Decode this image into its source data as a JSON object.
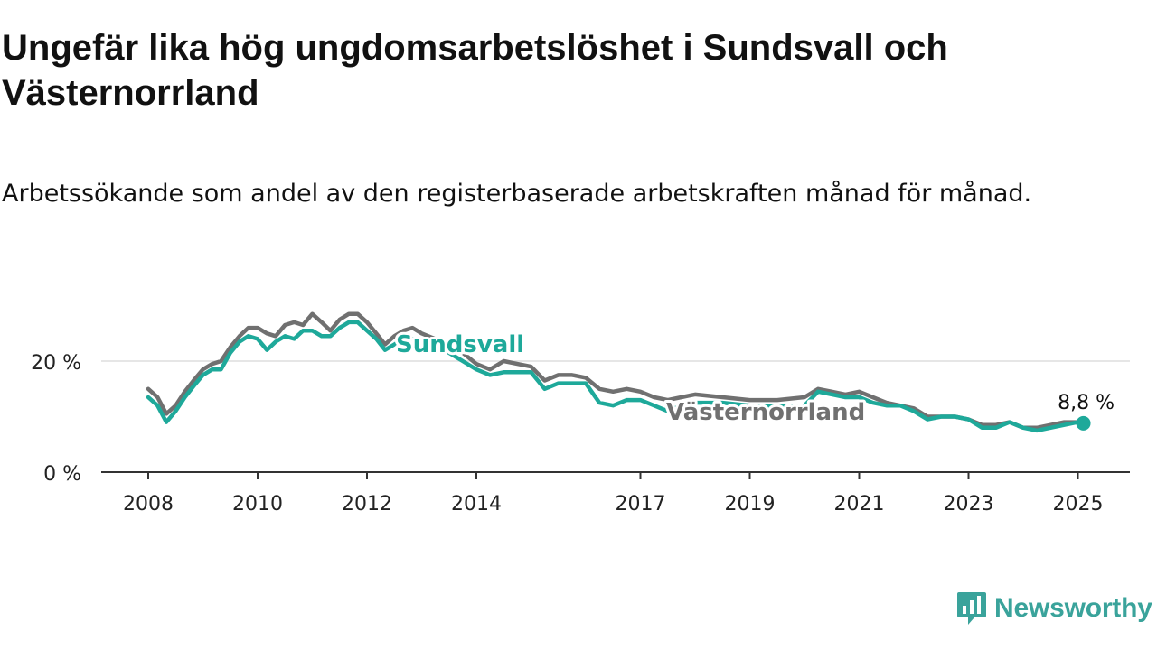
{
  "title": "Ungefär lika hög ungdomsarbetslöshet i Sundsvall och Västernorrland",
  "subtitle": "Arbetssökande som andel av den registerbaserade arbetskraften månad för månad.",
  "brand": {
    "name": "Newsworthy",
    "color": "#3aa39b",
    "icon": "newsworthy-chart-bubble-icon"
  },
  "chart_data": {
    "type": "line",
    "xlabel": "",
    "ylabel": "",
    "x_range": [
      2008,
      2025.1
    ],
    "ylim": [
      0,
      30
    ],
    "y_ticks": [
      0,
      20
    ],
    "y_tick_labels": [
      "0 %",
      "20 %"
    ],
    "x_ticks": [
      2008,
      2010,
      2012,
      2014,
      2017,
      2019,
      2021,
      2023,
      2025
    ],
    "x_tick_labels": [
      "2008",
      "2010",
      "2012",
      "2014",
      "2017",
      "2019",
      "2021",
      "2023",
      "2025"
    ],
    "grid": "horizontal",
    "legend": "inline labels",
    "end_label": "8,8 %",
    "series": [
      {
        "name": "Västernorrland",
        "color": "#707070",
        "x": [
          2008.0,
          2008.17,
          2008.33,
          2008.5,
          2008.67,
          2008.83,
          2009.0,
          2009.17,
          2009.33,
          2009.5,
          2009.67,
          2009.83,
          2010.0,
          2010.17,
          2010.33,
          2010.5,
          2010.67,
          2010.83,
          2011.0,
          2011.17,
          2011.33,
          2011.5,
          2011.67,
          2011.83,
          2012.0,
          2012.17,
          2012.33,
          2012.5,
          2012.67,
          2012.83,
          2013.0,
          2013.25,
          2013.5,
          2013.75,
          2014.0,
          2014.25,
          2014.5,
          2014.75,
          2015.0,
          2015.25,
          2015.5,
          2015.75,
          2016.0,
          2016.25,
          2016.5,
          2016.75,
          2017.0,
          2017.25,
          2017.5,
          2017.75,
          2018.0,
          2018.5,
          2019.0,
          2019.5,
          2020.0,
          2020.25,
          2020.5,
          2020.75,
          2021.0,
          2021.25,
          2021.5,
          2021.75,
          2022.0,
          2022.25,
          2022.5,
          2022.75,
          2023.0,
          2023.25,
          2023.5,
          2023.75,
          2024.0,
          2024.25,
          2024.5,
          2024.75,
          2025.0,
          2025.1
        ],
        "values": [
          15.0,
          13.5,
          10.5,
          12.0,
          14.5,
          16.5,
          18.5,
          19.5,
          20.0,
          22.5,
          24.5,
          26.0,
          26.0,
          25.0,
          24.5,
          26.5,
          27.0,
          26.5,
          28.5,
          27.0,
          25.5,
          27.5,
          28.5,
          28.5,
          27.0,
          25.0,
          23.0,
          24.5,
          25.5,
          26.0,
          25.0,
          24.0,
          23.0,
          21.5,
          19.5,
          18.5,
          20.0,
          19.5,
          19.0,
          16.5,
          17.5,
          17.5,
          17.0,
          15.0,
          14.5,
          15.0,
          14.5,
          13.5,
          13.0,
          13.5,
          14.0,
          13.5,
          13.0,
          13.0,
          13.5,
          15.0,
          14.5,
          14.0,
          14.5,
          13.5,
          12.5,
          12.0,
          11.5,
          10.0,
          10.0,
          10.0,
          9.5,
          8.5,
          8.5,
          9.0,
          8.0,
          8.0,
          8.5,
          9.0,
          9.0,
          8.9
        ]
      },
      {
        "name": "Sundsvall",
        "color": "#1ea99a",
        "x": [
          2008.0,
          2008.17,
          2008.33,
          2008.5,
          2008.67,
          2008.83,
          2009.0,
          2009.17,
          2009.33,
          2009.5,
          2009.67,
          2009.83,
          2010.0,
          2010.17,
          2010.33,
          2010.5,
          2010.67,
          2010.83,
          2011.0,
          2011.17,
          2011.33,
          2011.5,
          2011.67,
          2011.83,
          2012.0,
          2012.17,
          2012.33,
          2012.5,
          2012.67,
          2012.83,
          2013.0,
          2013.25,
          2013.5,
          2013.75,
          2014.0,
          2014.25,
          2014.5,
          2014.75,
          2015.0,
          2015.25,
          2015.5,
          2015.75,
          2016.0,
          2016.25,
          2016.5,
          2016.75,
          2017.0,
          2017.25,
          2017.5,
          2017.75,
          2018.0,
          2018.5,
          2019.0,
          2019.5,
          2020.0,
          2020.25,
          2020.5,
          2020.75,
          2021.0,
          2021.25,
          2021.5,
          2021.75,
          2022.0,
          2022.25,
          2022.5,
          2022.75,
          2023.0,
          2023.25,
          2023.5,
          2023.75,
          2024.0,
          2024.25,
          2024.5,
          2024.75,
          2025.0,
          2025.1
        ],
        "values": [
          13.5,
          12.0,
          9.0,
          11.0,
          13.5,
          15.5,
          17.5,
          18.5,
          18.5,
          21.5,
          23.5,
          24.5,
          24.0,
          22.0,
          23.5,
          24.5,
          24.0,
          25.5,
          25.5,
          24.5,
          24.5,
          26.0,
          27.0,
          27.0,
          25.5,
          24.0,
          22.0,
          23.0,
          24.0,
          24.0,
          23.5,
          22.5,
          21.5,
          20.0,
          18.5,
          17.5,
          18.0,
          18.0,
          18.0,
          15.0,
          16.0,
          16.0,
          16.0,
          12.5,
          12.0,
          13.0,
          13.0,
          12.0,
          11.0,
          12.0,
          12.5,
          12.5,
          12.0,
          12.0,
          12.0,
          14.5,
          14.0,
          13.5,
          13.5,
          12.5,
          12.0,
          12.0,
          11.0,
          9.5,
          10.0,
          10.0,
          9.5,
          8.0,
          8.0,
          9.0,
          8.0,
          7.5,
          8.0,
          8.5,
          9.0,
          8.8
        ]
      }
    ]
  }
}
